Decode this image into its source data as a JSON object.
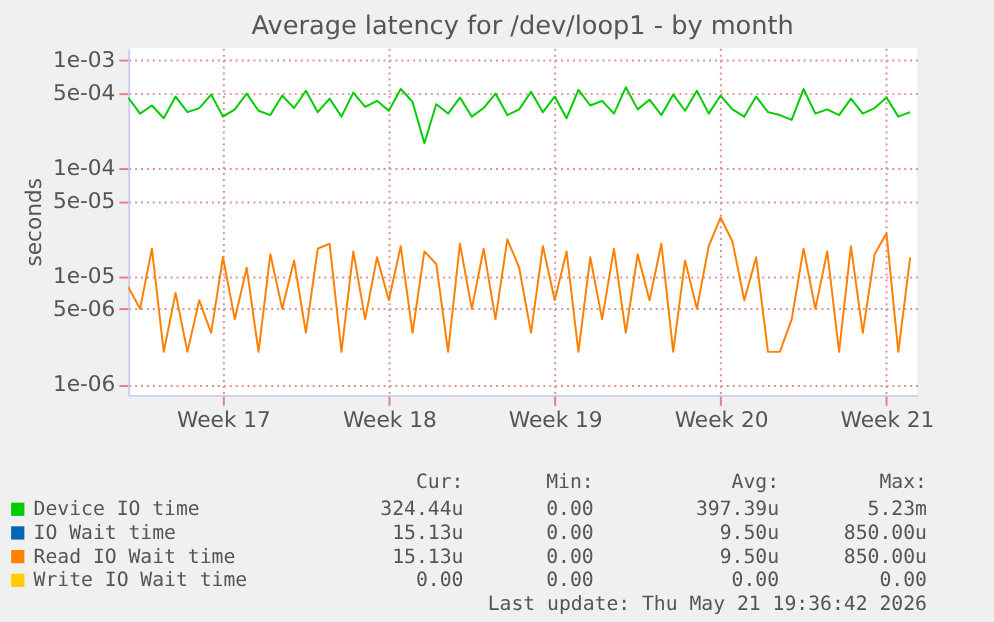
{
  "chart_data": {
    "type": "line",
    "title": "Average latency for /dev/loop1 - by month",
    "ylabel": "seconds",
    "log": "y",
    "grid": true,
    "legend": "bottom",
    "xlim": [
      "2026-04-16",
      "2026-05-19T07:00"
    ],
    "xticks": [
      {
        "value": "2026-04-20",
        "label": "Week 17"
      },
      {
        "value": "2026-04-27",
        "label": "Week 18"
      },
      {
        "value": "2026-05-04",
        "label": "Week 19"
      },
      {
        "value": "2026-05-11",
        "label": "Week 20"
      },
      {
        "value": "2026-05-18",
        "label": "Week 21"
      }
    ],
    "ylim": [
      8e-07,
      0.0013
    ],
    "yticks": [
      {
        "value": 0.001,
        "label": "1e-03"
      },
      {
        "value": 0.0005,
        "label": "5e-04"
      },
      {
        "value": 0.0001,
        "label": "1e-04"
      },
      {
        "value": 5e-05,
        "label": "5e-05"
      },
      {
        "value": 1e-05,
        "label": "1e-05"
      },
      {
        "value": 5e-06,
        "label": "5e-06"
      },
      {
        "value": 1e-06,
        "label": "1e-06"
      }
    ],
    "x": [
      "2026-04-16T00:00",
      "2026-04-16T12:00",
      "2026-04-17T00:00",
      "2026-04-17T12:00",
      "2026-04-18T00:00",
      "2026-04-18T12:00",
      "2026-04-19T00:00",
      "2026-04-19T12:00",
      "2026-04-20T00:00",
      "2026-04-20T12:00",
      "2026-04-21T00:00",
      "2026-04-21T12:00",
      "2026-04-22T00:00",
      "2026-04-22T12:00",
      "2026-04-23T00:00",
      "2026-04-23T12:00",
      "2026-04-24T00:00",
      "2026-04-24T12:00",
      "2026-04-25T00:00",
      "2026-04-25T12:00",
      "2026-04-26T00:00",
      "2026-04-26T12:00",
      "2026-04-27T00:00",
      "2026-04-27T12:00",
      "2026-04-28T00:00",
      "2026-04-28T12:00",
      "2026-04-29T00:00",
      "2026-04-29T12:00",
      "2026-04-30T00:00",
      "2026-04-30T12:00",
      "2026-05-01T00:00",
      "2026-05-01T12:00",
      "2026-05-02T00:00",
      "2026-05-02T12:00",
      "2026-05-03T00:00",
      "2026-05-03T12:00",
      "2026-05-04T00:00",
      "2026-05-04T12:00",
      "2026-05-05T00:00",
      "2026-05-05T12:00",
      "2026-05-06T00:00",
      "2026-05-06T12:00",
      "2026-05-07T00:00",
      "2026-05-07T12:00",
      "2026-05-08T00:00",
      "2026-05-08T12:00",
      "2026-05-09T00:00",
      "2026-05-09T12:00",
      "2026-05-10T00:00",
      "2026-05-10T12:00",
      "2026-05-11T00:00",
      "2026-05-11T12:00",
      "2026-05-12T00:00",
      "2026-05-12T12:00",
      "2026-05-13T00:00",
      "2026-05-13T12:00",
      "2026-05-14T00:00",
      "2026-05-14T12:00",
      "2026-05-15T00:00",
      "2026-05-15T12:00",
      "2026-05-16T00:00",
      "2026-05-16T12:00",
      "2026-05-17T00:00",
      "2026-05-17T12:00",
      "2026-05-18T00:00",
      "2026-05-18T12:00",
      "2026-05-19T00:00"
    ],
    "series": [
      {
        "name": "Device IO time",
        "color": "#00cc00",
        "values": [
          0.00045,
          0.00032,
          0.00038,
          0.00029,
          0.00046,
          0.00033,
          0.00036,
          0.00048,
          0.0003,
          0.00035,
          0.00049,
          0.00034,
          0.00031,
          0.00047,
          0.00036,
          0.00052,
          0.00033,
          0.00044,
          0.0003,
          0.0005,
          0.00037,
          0.00042,
          0.00034,
          0.00054,
          0.00041,
          0.00017,
          0.00039,
          0.00032,
          0.00045,
          0.0003,
          0.00036,
          0.00049,
          0.00031,
          0.00035,
          0.00051,
          0.00033,
          0.00046,
          0.00029,
          0.00053,
          0.00038,
          0.00042,
          0.00032,
          0.00056,
          0.00035,
          0.00043,
          0.00031,
          0.00048,
          0.00034,
          0.00052,
          0.00032,
          0.00047,
          0.00035,
          0.0003,
          0.00046,
          0.00033,
          0.00031,
          0.00028,
          0.00054,
          0.00032,
          0.00035,
          0.00031,
          0.00044,
          0.00032,
          0.00036,
          0.00045,
          0.0003,
          0.00033
        ]
      },
      {
        "name": "IO Wait time",
        "color": "#0066b3",
        "values": [
          null,
          null,
          null,
          null,
          null,
          null,
          null,
          null,
          null,
          null,
          null,
          null,
          null,
          null,
          null,
          null,
          null,
          null,
          null,
          null,
          null,
          null,
          null,
          null,
          null,
          null,
          null,
          null,
          null,
          null,
          null,
          null,
          null,
          null,
          null,
          null,
          null,
          null,
          null,
          null,
          null,
          null,
          null,
          null,
          null,
          null,
          null,
          null,
          null,
          null,
          null,
          null,
          null,
          null,
          null,
          null,
          null,
          null,
          null,
          null,
          null,
          null,
          null,
          null,
          null,
          null,
          null
        ]
      },
      {
        "name": "Read IO Wait time",
        "color": "#ff8000",
        "values": [
          8e-06,
          5e-06,
          1.8e-05,
          2e-06,
          7e-06,
          2e-06,
          6e-06,
          3e-06,
          1.5e-05,
          4e-06,
          1.2e-05,
          2e-06,
          1.6e-05,
          5e-06,
          1.4e-05,
          3e-06,
          1.8e-05,
          2e-05,
          2e-06,
          1.7e-05,
          4e-06,
          1.5e-05,
          6e-06,
          1.9e-05,
          3e-06,
          1.7e-05,
          1.3e-05,
          2e-06,
          2e-05,
          5e-06,
          1.8e-05,
          4e-06,
          2.2e-05,
          1.2e-05,
          3e-06,
          1.9e-05,
          6e-06,
          1.7e-05,
          2e-06,
          1.5e-05,
          4e-06,
          1.8e-05,
          3e-06,
          1.6e-05,
          6e-06,
          2e-05,
          2e-06,
          1.4e-05,
          5e-06,
          1.9e-05,
          3.5e-05,
          2.1e-05,
          6e-06,
          1.5e-05,
          2e-06,
          2e-06,
          4e-06,
          1.8e-05,
          5e-06,
          1.7e-05,
          2e-06,
          1.9e-05,
          3e-06,
          1.6e-05,
          2.5e-05,
          2e-06,
          1.5e-05
        ]
      },
      {
        "name": "Write IO Wait time",
        "color": "#ffcc00",
        "values": [
          null,
          null,
          null,
          null,
          null,
          null,
          null,
          null,
          null,
          null,
          null,
          null,
          null,
          null,
          null,
          null,
          null,
          null,
          null,
          null,
          null,
          null,
          null,
          null,
          null,
          null,
          null,
          null,
          null,
          null,
          null,
          null,
          null,
          null,
          null,
          null,
          null,
          null,
          null,
          null,
          null,
          null,
          null,
          null,
          null,
          null,
          null,
          null,
          null,
          null,
          null,
          null,
          null,
          null,
          null,
          null,
          null,
          null,
          null,
          null,
          null,
          null,
          null,
          null,
          null,
          null,
          null
        ]
      }
    ],
    "annotations": [
      "Cur:",
      "Min:",
      "Avg:",
      "Max:",
      "324.44u",
      "0.00",
      "397.39u",
      "5.23m",
      "15.13u",
      "0.00",
      "9.50u",
      "850.00u",
      "15.13u",
      "0.00",
      "9.50u",
      "850.00u",
      "0.00",
      "0.00",
      "0.00",
      "0.00",
      "Last update: Thu May 21 19:36:42 2026"
    ]
  }
}
